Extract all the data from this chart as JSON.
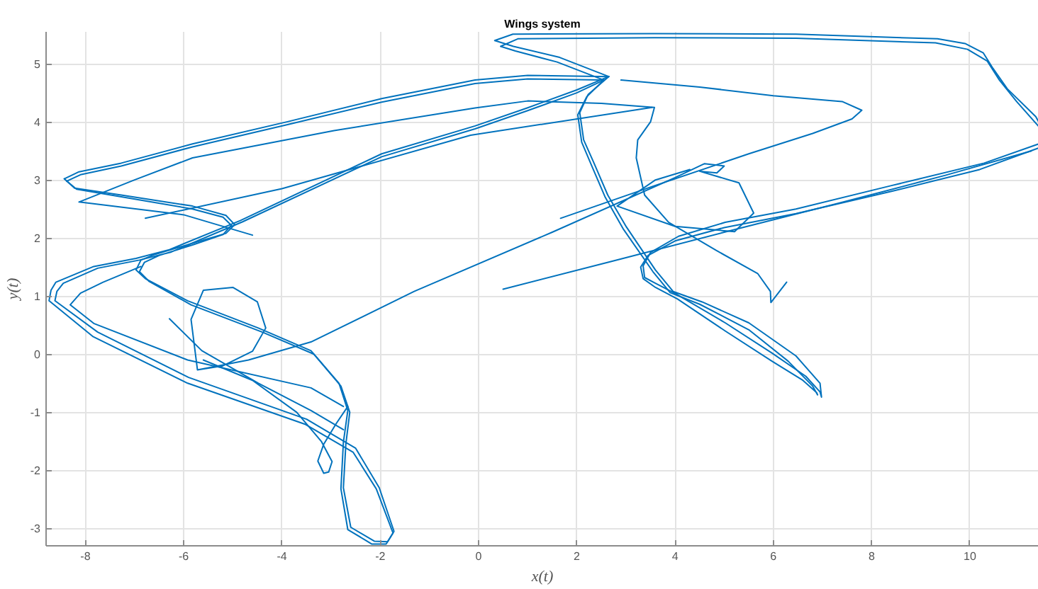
{
  "chart_data": {
    "type": "line",
    "title": "Wings system",
    "xlabel": "x(t)",
    "ylabel": "y(t)",
    "xlim": [
      -8.8,
      11.4
    ],
    "ylim": [
      -3.3,
      5.55
    ],
    "xticks": [
      -8,
      -6,
      -4,
      -2,
      0,
      2,
      4,
      6,
      8,
      10
    ],
    "yticks": [
      -3,
      -2,
      -1,
      0,
      1,
      2,
      3,
      4,
      5
    ],
    "grid": true,
    "series": [
      {
        "color": "#0072bd",
        "x": [
          2.65,
          1.0,
          -0.07,
          -1.97,
          -3.9,
          -5.82,
          -7.27,
          -8.13,
          -8.43
        ],
        "values": [
          4.78,
          4.8,
          4.72,
          4.4,
          4.0,
          3.62,
          3.29,
          3.14,
          3.02
        ]
      },
      {
        "color": "#0072bd",
        "x": [
          -8.43,
          -8.22,
          -7.27,
          -5.82,
          -5.14,
          -4.96,
          -5.14,
          -5.82,
          -6.58,
          -6.87,
          -6.97,
          -6.78,
          -5.92,
          -4.48,
          -3.41,
          -2.84,
          -2.66,
          -2.75,
          -2.8,
          -2.66,
          -2.17,
          -1.88,
          -1.74,
          -2.08,
          -2.55,
          -3.52,
          -5.92,
          -7.84,
          -8.74,
          -8.7,
          -8.6,
          -7.83,
          -6.97,
          -6.29,
          -4.85,
          -1.97,
          -0.07,
          0.99,
          2.0,
          2.65
        ],
        "values": [
          3.02,
          2.86,
          2.74,
          2.55,
          2.39,
          2.23,
          2.08,
          1.91,
          1.72,
          1.62,
          1.45,
          1.3,
          0.92,
          0.45,
          0.06,
          -0.5,
          -0.97,
          -1.52,
          -2.32,
          -3.02,
          -3.27,
          -3.27,
          -3.08,
          -2.32,
          -1.69,
          -1.21,
          -0.5,
          0.3,
          0.92,
          1.1,
          1.24,
          1.51,
          1.65,
          1.8,
          2.3,
          3.45,
          3.93,
          4.24,
          4.55,
          4.78
        ]
      },
      {
        "color": "#0072bd",
        "x": [
          2.55,
          1.0,
          -0.07,
          -1.97,
          -3.9,
          -5.82,
          -7.27,
          -8.1,
          -8.38
        ],
        "values": [
          4.72,
          4.74,
          4.66,
          4.34,
          3.95,
          3.57,
          3.24,
          3.09,
          2.98
        ]
      },
      {
        "color": "#0072bd",
        "x": [
          -8.38,
          -8.18,
          -7.27,
          -5.82,
          -5.2,
          -5.03,
          -5.2,
          -5.82,
          -6.5,
          -6.8,
          -6.9,
          -6.7,
          -5.85,
          -4.4,
          -3.35,
          -2.8,
          -2.62,
          -2.7,
          -2.75,
          -2.6,
          -2.12,
          -1.85,
          -1.72,
          -2.02,
          -2.5,
          -3.5,
          -5.9,
          -7.75,
          -8.62,
          -8.58,
          -8.45,
          -7.75,
          -6.9,
          -6.25,
          -4.8,
          -1.97,
          -0.07,
          0.99,
          2.0,
          2.55
        ],
        "values": [
          2.98,
          2.84,
          2.71,
          2.5,
          2.36,
          2.22,
          2.06,
          1.88,
          1.7,
          1.58,
          1.42,
          1.25,
          0.85,
          0.38,
          0.0,
          -0.55,
          -1.0,
          -1.55,
          -2.3,
          -2.98,
          -3.22,
          -3.23,
          -3.05,
          -2.3,
          -1.62,
          -1.12,
          -0.4,
          0.38,
          0.92,
          1.08,
          1.22,
          1.48,
          1.62,
          1.76,
          2.28,
          3.4,
          3.88,
          4.19,
          4.5,
          4.72
        ]
      },
      {
        "color": "#0072bd",
        "x": [
          -2.75,
          -3.41,
          -5.92,
          -7.83,
          -8.31,
          -8.1,
          -7.64,
          -6.87
        ],
        "values": [
          -0.9,
          -0.58,
          -0.1,
          0.53,
          0.85,
          1.05,
          1.24,
          1.51
        ]
      },
      {
        "color": "#0072bd",
        "x": [
          2.65,
          1.65,
          0.71,
          0.33,
          0.7,
          3.58,
          6.46,
          9.34,
          9.9,
          10.27,
          10.47,
          10.76,
          11.34,
          11.4
        ],
        "values": [
          4.78,
          5.11,
          5.3,
          5.4,
          5.51,
          5.52,
          5.51,
          5.43,
          5.35,
          5.19,
          4.92,
          4.57,
          4.09,
          4.0
        ]
      },
      {
        "color": "#0072bd",
        "x": [
          11.4,
          10.29,
          8.39,
          6.46,
          5.02,
          4.07,
          3.5,
          3.35,
          3.38,
          3.6,
          4.01,
          5.02,
          5.97,
          6.66,
          6.95,
          6.98,
          6.95,
          6.46,
          5.5,
          4.55,
          3.96,
          3.6,
          3.01,
          2.63,
          2.35,
          2.14,
          2.06,
          2.23,
          2.65
        ],
        "values": [
          3.62,
          3.29,
          2.9,
          2.5,
          2.27,
          2.03,
          1.75,
          1.52,
          1.32,
          1.22,
          1.04,
          0.54,
          0.02,
          -0.38,
          -0.65,
          -0.74,
          -0.5,
          -0.03,
          0.54,
          0.9,
          1.08,
          1.45,
          2.19,
          2.74,
          3.29,
          3.69,
          4.16,
          4.47,
          4.78
        ]
      },
      {
        "color": "#0072bd",
        "x": [
          2.55,
          1.6,
          0.75,
          0.45,
          0.8,
          3.58,
          6.46,
          9.3,
          9.95,
          10.35,
          10.6,
          10.95,
          11.4
        ],
        "values": [
          4.72,
          5.03,
          5.22,
          5.3,
          5.43,
          5.45,
          5.44,
          5.36,
          5.25,
          5.05,
          4.72,
          4.35,
          3.92
        ]
      },
      {
        "color": "#0072bd",
        "x": [
          11.4,
          10.2,
          8.39,
          6.46,
          5.0,
          4.0,
          3.45,
          3.3,
          3.35,
          3.6,
          4.05,
          5.02,
          5.97,
          6.6,
          6.88,
          6.9,
          6.8,
          6.3,
          5.5,
          4.5,
          3.9,
          3.55,
          2.95,
          2.58,
          2.3,
          2.1,
          2.02,
          2.2,
          2.55
        ],
        "values": [
          3.55,
          3.18,
          2.8,
          2.42,
          2.18,
          1.95,
          1.7,
          1.5,
          1.3,
          1.15,
          0.95,
          0.4,
          -0.12,
          -0.45,
          -0.66,
          -0.7,
          -0.55,
          -0.12,
          0.42,
          0.86,
          1.06,
          1.42,
          2.15,
          2.7,
          3.25,
          3.65,
          4.12,
          4.43,
          4.72
        ]
      },
      {
        "color": "#0072bd",
        "x": [
          -4.6,
          -6.0,
          -8.13,
          -7.0,
          -5.82,
          -2.94,
          -0.07,
          1.0,
          2.5,
          3.58,
          3.5,
          3.24,
          3.21,
          3.38,
          3.87,
          4.83,
          5.68,
          5.94,
          5.95,
          6.27
        ],
        "values": [
          2.05,
          2.4,
          2.62,
          3.0,
          3.38,
          3.85,
          4.24,
          4.36,
          4.32,
          4.25,
          4.0,
          3.69,
          3.38,
          2.74,
          2.27,
          1.79,
          1.39,
          1.08,
          0.89,
          1.24
        ]
      },
      {
        "color": "#0072bd",
        "x": [
          -6.78,
          -4.0,
          -0.16,
          3.53
        ],
        "values": [
          2.34,
          2.85,
          3.77,
          4.25
        ]
      },
      {
        "color": "#0072bd",
        "x": [
          -5.72,
          -5.85,
          -5.6,
          -5.0,
          -4.5,
          -4.33,
          -4.6,
          -5.2,
          -5.72,
          -4.68,
          -3.41,
          -1.31,
          1.5,
          4.0,
          4.6,
          5.0,
          4.85,
          4.5,
          5.3,
          5.6,
          5.21,
          4.0,
          2.82,
          3.6,
          4.3
        ],
        "values": [
          -0.27,
          0.6,
          1.1,
          1.15,
          0.9,
          0.45,
          0.05,
          -0.2,
          -0.27,
          -0.1,
          0.21,
          1.08,
          2.1,
          3.04,
          3.28,
          3.24,
          3.12,
          3.15,
          2.95,
          2.43,
          2.11,
          2.2,
          2.55,
          3.0,
          3.18
        ]
      },
      {
        "color": "#0072bd",
        "x": [
          1.67,
          3.58,
          5.5,
          6.8,
          7.6,
          7.8,
          7.4,
          6.0,
          4.5,
          2.9
        ],
        "values": [
          2.34,
          2.9,
          3.45,
          3.8,
          4.05,
          4.2,
          4.35,
          4.45,
          4.6,
          4.72
        ]
      },
      {
        "color": "#0072bd",
        "x": [
          -6.29,
          -5.63,
          -4.48,
          -3.41,
          -2.75
        ],
        "values": [
          0.61,
          0.06,
          -0.5,
          -0.97,
          -1.3
        ]
      },
      {
        "color": "#0072bd",
        "x": [
          -5.6,
          -4.6,
          -3.7,
          -3.2,
          -2.98,
          -3.05,
          -3.15,
          -3.27,
          -3.15,
          -2.9,
          -2.66
        ],
        "values": [
          -0.1,
          -0.45,
          -1.0,
          -1.5,
          -1.85,
          -2.03,
          -2.05,
          -1.84,
          -1.55,
          -1.2,
          -0.9
        ]
      },
      {
        "color": "#0072bd",
        "x": [
          0.5,
          2.72,
          5.0,
          7.33,
          9.5,
          11.25
        ],
        "values": [
          1.12,
          1.6,
          2.1,
          2.6,
          3.08,
          3.5
        ]
      }
    ]
  }
}
